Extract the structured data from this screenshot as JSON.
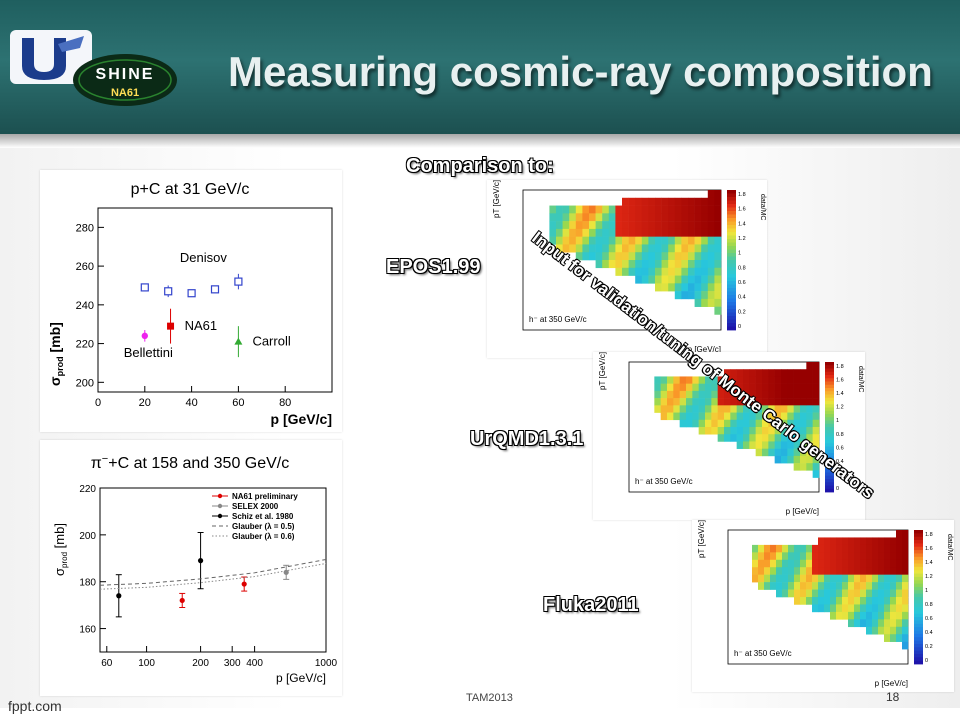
{
  "slide": {
    "title": "Measuring cosmic-ray composition",
    "logo_text": "SHINE",
    "logo_subtext": "NA61",
    "comparison_heading": "Comparison to:",
    "model_labels": [
      "EPOS1.99",
      "UrQMD1.3.1",
      "Fluka2011"
    ],
    "rotated_note": "Input for validation/tuning of Monte Carlo generators",
    "footer_left": "fppt.com",
    "footer_center": "TAM2013",
    "page_number": "18"
  },
  "chart_data": [
    {
      "type": "scatter",
      "title": "p+C at 31 GeV/c",
      "xlabel": "p [GeV/c]",
      "ylabel": "σprod [mb]",
      "ylabel_main": "σ",
      "ylabel_sub": "prod",
      "ylabel_unit": "[mb]",
      "xlim": [
        0,
        100
      ],
      "ylim": [
        195,
        290
      ],
      "xticks": [
        0,
        20,
        40,
        60,
        80
      ],
      "yticks": [
        200,
        220,
        240,
        260,
        280
      ],
      "annotations": [
        "Denisov",
        "NA61",
        "Carroll",
        "Bellettini"
      ],
      "series": [
        {
          "name": "Denisov",
          "color": "#3344cc",
          "marker": "open-square",
          "x": [
            20,
            30,
            40,
            50,
            60
          ],
          "y": [
            249,
            247,
            246,
            248,
            252
          ],
          "yerr": [
            0,
            3,
            0,
            0,
            4
          ]
        },
        {
          "name": "NA61",
          "color": "#dd0000",
          "marker": "filled-square",
          "x": [
            31
          ],
          "y": [
            229
          ],
          "yerr": [
            9
          ]
        },
        {
          "name": "Carroll",
          "color": "#33aa33",
          "marker": "triangle",
          "x": [
            60
          ],
          "y": [
            221
          ],
          "yerr": [
            8
          ]
        },
        {
          "name": "Bellettini",
          "color": "#ee22ee",
          "marker": "circle",
          "x": [
            20
          ],
          "y": [
            224
          ],
          "yerr": [
            3
          ]
        }
      ]
    },
    {
      "type": "scatter",
      "title_pi": "π",
      "title_sup": "−",
      "title_rest": "+C at 158 and 350 GeV/c",
      "xlabel": "p [GeV/c]",
      "ylabel": "σprod [mb]",
      "ylabel_main": "σ",
      "ylabel_sub": "prod",
      "ylabel_unit": "[mb]",
      "xscale": "log",
      "xlim": [
        55,
        1000
      ],
      "ylim": [
        150,
        220
      ],
      "xticks": [
        60,
        100,
        200,
        300,
        400,
        1000
      ],
      "yticks": [
        160,
        180,
        200,
        220
      ],
      "legend": [
        "NA61 preliminary",
        "SELEX 2000",
        "Schiz et al. 1980",
        "Glauber (λ = 0.5)",
        "Glauber (λ = 0.6)"
      ],
      "series": [
        {
          "name": "NA61 preliminary",
          "color": "#dd0000",
          "x": [
            158,
            350
          ],
          "y": [
            172,
            179
          ],
          "yerr": [
            3,
            3
          ]
        },
        {
          "name": "SELEX 2000",
          "color": "#888888",
          "x": [
            600
          ],
          "y": [
            184
          ],
          "yerr": [
            3
          ]
        },
        {
          "name": "Schiz et al. 1980",
          "color": "#000000",
          "x": [
            70,
            200
          ],
          "y": [
            174,
            189
          ],
          "yerr": [
            9,
            12
          ]
        },
        {
          "name": "Glauber (λ = 0.5)",
          "color": "#666666",
          "line": "dashed",
          "x": [
            55,
            100,
            200,
            400,
            1000
          ],
          "y": [
            178.5,
            179.3,
            181.2,
            183.8,
            189.5
          ]
        },
        {
          "name": "Glauber (λ = 0.6)",
          "color": "#888888",
          "line": "dotted",
          "x": [
            55,
            100,
            200,
            400,
            1000
          ],
          "y": [
            176.8,
            177.6,
            179.6,
            182.2,
            187.8
          ]
        }
      ]
    },
    {
      "type": "heatmap",
      "model": "EPOS1.99",
      "xlabel": "p [GeV/c]",
      "ylabel": "pT [GeV/c]",
      "colorbar_label": "data/MC",
      "colorbar_range": [
        0,
        1.9
      ],
      "colorbar_ticks": [
        "1.8",
        "1.6",
        "1.4",
        "1.2",
        "1",
        "0.8",
        "0.6",
        "0.4",
        "0.2",
        "0"
      ],
      "note": "h⁻ at 350 GeV/c"
    },
    {
      "type": "heatmap",
      "model": "UrQMD1.3.1",
      "xlabel": "p [GeV/c]",
      "ylabel": "pT [GeV/c]",
      "colorbar_label": "data/MC",
      "colorbar_range": [
        0,
        1.9
      ],
      "colorbar_ticks": [
        "1.8",
        "1.6",
        "1.4",
        "1.2",
        "1",
        "0.8",
        "0.6",
        "0.4",
        "0.2",
        "0"
      ],
      "note": "h⁻ at 350 GeV/c"
    },
    {
      "type": "heatmap",
      "model": "Fluka2011",
      "xlabel": "p [GeV/c]",
      "ylabel": "pT [GeV/c]",
      "colorbar_label": "data/MC",
      "colorbar_range": [
        0,
        1.9
      ],
      "colorbar_ticks": [
        "1.8",
        "1.6",
        "1.4",
        "1.2",
        "1",
        "0.8",
        "0.6",
        "0.4",
        "0.2",
        "0"
      ],
      "note": "h⁻ at 350 GeV/c"
    }
  ]
}
